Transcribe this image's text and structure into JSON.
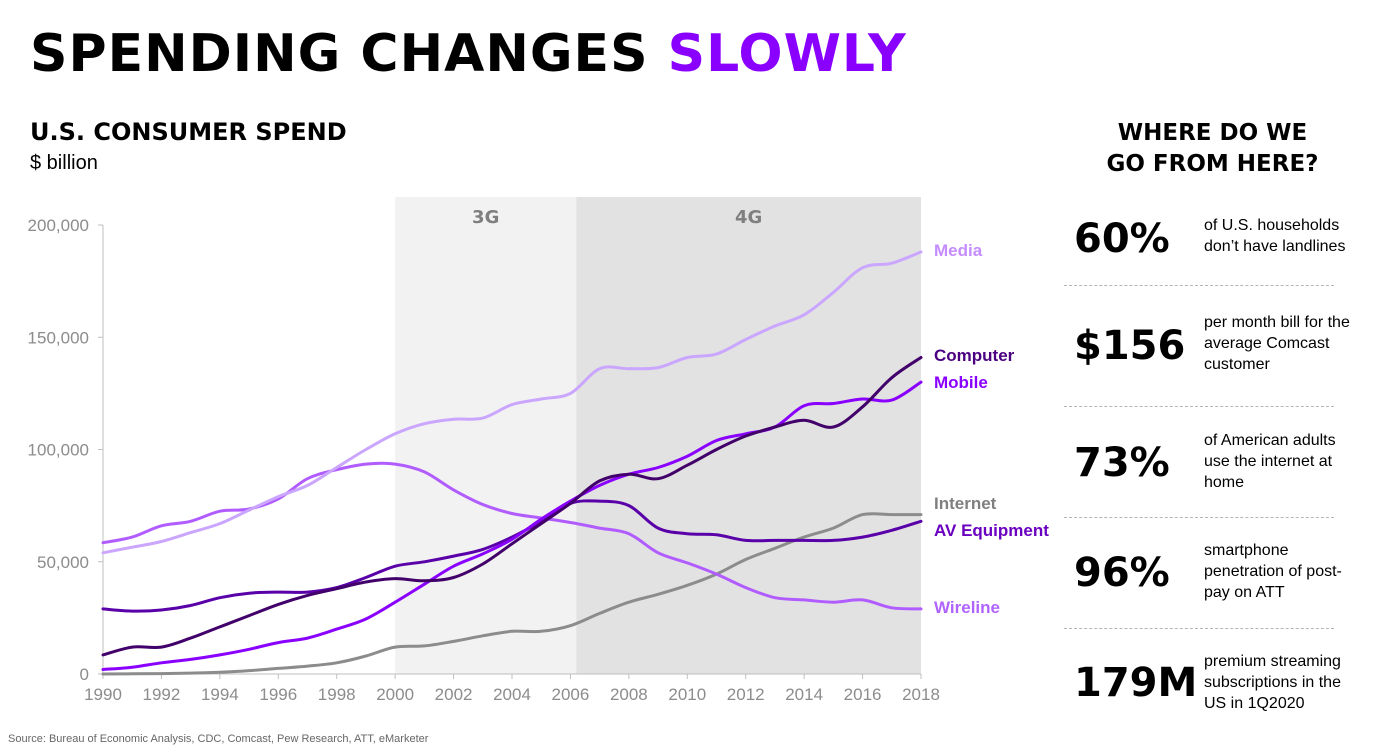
{
  "title": {
    "main": "SPENDING CHANGES",
    "accent": "SLOWLY",
    "accent_color": "#8a00ff"
  },
  "chart_heading": {
    "title": "U.S. CONSUMER SPEND",
    "unit": "$ billion"
  },
  "chart_data": {
    "type": "line",
    "title": "U.S. CONSUMER SPEND",
    "ylabel": "$ billion",
    "xlabel": "",
    "xlim": [
      1990,
      2018
    ],
    "ylim": [
      0,
      200000
    ],
    "x_ticks": [
      "1990",
      "1992",
      "1994",
      "1996",
      "1998",
      "2000",
      "2002",
      "2004",
      "2006",
      "2008",
      "2010",
      "2012",
      "2014",
      "2016",
      "2018"
    ],
    "y_ticks": [
      "0",
      "50,000",
      "100,000",
      "150,000",
      "200,000"
    ],
    "grid": false,
    "legend": "direct labels at line ends (right)",
    "bands": [
      {
        "label": "3G",
        "from": 2000,
        "to": 2006.2,
        "color": "#f2f2f2"
      },
      {
        "label": "4G",
        "from": 2006.2,
        "to": 2018,
        "color": "#e2e2e2"
      }
    ],
    "x": [
      1990,
      1991,
      1992,
      1993,
      1994,
      1995,
      1996,
      1997,
      1998,
      1999,
      2000,
      2001,
      2002,
      2003,
      2004,
      2005,
      2006,
      2007,
      2008,
      2009,
      2010,
      2011,
      2012,
      2013,
      2014,
      2015,
      2016,
      2017,
      2018
    ],
    "series": [
      {
        "name": "Media",
        "color": "#caa6ff",
        "label_color": "#c58cff",
        "values": [
          54000,
          56500,
          59000,
          63000,
          67000,
          73000,
          79000,
          84000,
          92000,
          100000,
          107000,
          111500,
          113500,
          114000,
          120000,
          122500,
          125000,
          136000,
          136000,
          136500,
          141000,
          142500,
          149000,
          155000,
          160000,
          170000,
          181000,
          183000,
          188000
        ]
      },
      {
        "name": "Computer",
        "color": "#42006a",
        "label_color": "#4a0080",
        "values": [
          8500,
          12000,
          12000,
          16000,
          21000,
          26000,
          31000,
          35000,
          38000,
          41000,
          42500,
          41500,
          43000,
          49000,
          58000,
          67000,
          76000,
          86000,
          89000,
          87000,
          93000,
          100000,
          106000,
          110000,
          113000,
          110000,
          119000,
          132000,
          141000
        ]
      },
      {
        "name": "Mobile",
        "color": "#8a00ff",
        "label_color": "#8a00ff",
        "values": [
          2000,
          3000,
          5000,
          6500,
          8500,
          11000,
          14000,
          16000,
          20000,
          24500,
          32000,
          40000,
          48000,
          53500,
          60000,
          69000,
          77000,
          84000,
          89000,
          92000,
          97000,
          104000,
          107000,
          110000,
          119500,
          120500,
          122500,
          122000,
          130000
        ]
      },
      {
        "name": "Internet",
        "color": "#8c8c8c",
        "label_color": "#7f7f7f",
        "values": [
          0,
          100,
          200,
          400,
          800,
          1500,
          2500,
          3500,
          5000,
          8000,
          12000,
          12500,
          14500,
          17000,
          19000,
          19000,
          21500,
          27000,
          32000,
          35500,
          39500,
          44500,
          51000,
          56000,
          61000,
          65000,
          71000,
          71000,
          71000
        ]
      },
      {
        "name": "AV Equipment",
        "color": "#5a00a8",
        "label_color": "#6a00c0",
        "values": [
          29000,
          28000,
          28500,
          30500,
          34000,
          36000,
          36500,
          36500,
          38500,
          43000,
          48000,
          50000,
          52500,
          55500,
          61000,
          68000,
          76000,
          77000,
          75000,
          65000,
          62500,
          62000,
          59500,
          59500,
          59500,
          59500,
          61000,
          64000,
          68000
        ]
      },
      {
        "name": "Wireline",
        "color": "#b15cff",
        "label_color": "#b064ff",
        "values": [
          58500,
          61000,
          66000,
          68000,
          72500,
          73500,
          78000,
          87000,
          91000,
          93500,
          93500,
          90000,
          82000,
          75500,
          71500,
          69500,
          67500,
          65000,
          62500,
          54000,
          49500,
          44500,
          38500,
          34000,
          33000,
          32000,
          33000,
          29500,
          29000
        ]
      }
    ]
  },
  "side_panel": {
    "title_line1": "WHERE DO WE",
    "title_line2": "GO FROM HERE?",
    "stats": [
      {
        "value": "60%",
        "text": "of U.S. households don’t have landlines"
      },
      {
        "value": "$156",
        "text": "per month bill for the average Comcast customer"
      },
      {
        "value": "73%",
        "text": "of American adults use the internet at home"
      },
      {
        "value": "96%",
        "text": "smartphone penetration of post-pay on ATT"
      },
      {
        "value": "179M",
        "text": "premium streaming subscriptions in the US in 1Q2020"
      }
    ]
  },
  "source": "Source: Bureau of Economic Analysis, CDC, Comcast, Pew Research, ATT, eMarketer"
}
